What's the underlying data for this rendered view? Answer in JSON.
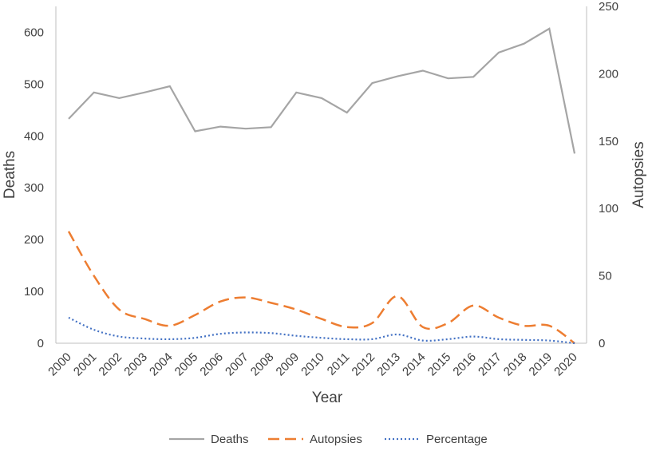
{
  "chart_data": {
    "type": "line",
    "title": "",
    "xlabel": "Year",
    "ylabel": "Deaths",
    "y2label": "Autopsies",
    "ylim": [
      0,
      650
    ],
    "y2lim": [
      0,
      250
    ],
    "yticks": [
      "0",
      "100",
      "200",
      "300",
      "400",
      "500",
      "600"
    ],
    "y2ticks": [
      "0",
      "50",
      "100",
      "150",
      "200",
      "250"
    ],
    "categories": [
      "2000",
      "2001",
      "2002",
      "2003",
      "2004",
      "2005",
      "2006",
      "2007",
      "2008",
      "2009",
      "2010",
      "2011",
      "2012",
      "2013",
      "2014",
      "2015",
      "2016",
      "2017",
      "2018",
      "2019",
      "2020"
    ],
    "legend_position": "bottom",
    "series": [
      {
        "name": "Deaths",
        "axis": "left",
        "color": "#a5a5a5",
        "dash": "solid",
        "values": [
          433,
          484,
          473,
          484,
          496,
          409,
          418,
          414,
          417,
          484,
          473,
          445,
          502,
          515,
          526,
          511,
          514,
          561,
          578,
          607,
          366
        ]
      },
      {
        "name": "Autopsies",
        "axis": "right",
        "color": "#ed7d31",
        "dash": "dashed",
        "values": [
          83,
          50,
          25,
          18,
          13,
          21,
          31,
          34,
          30,
          25,
          18,
          12,
          15,
          35,
          12,
          15,
          28,
          19,
          13,
          13,
          0
        ]
      },
      {
        "name": "Percentage",
        "axis": "right",
        "color": "#4472c4",
        "dash": "dotted",
        "values": [
          19,
          10,
          5,
          3.5,
          3,
          4,
          7,
          8,
          7.5,
          5.5,
          4,
          3,
          3,
          6.5,
          2,
          3,
          5,
          3,
          2.5,
          2,
          0
        ]
      }
    ]
  }
}
